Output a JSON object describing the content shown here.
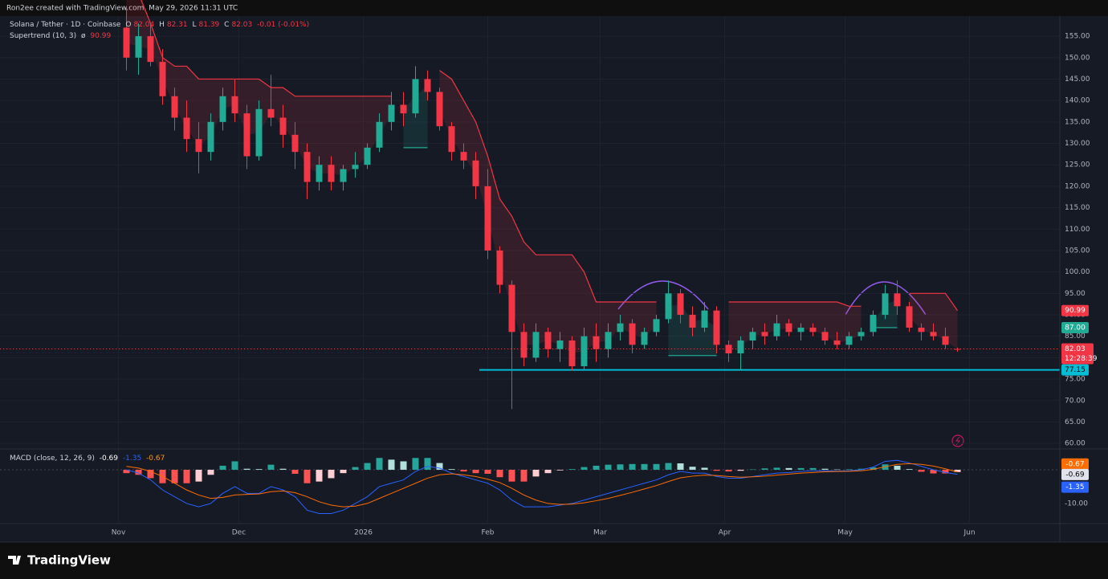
{
  "header": "Ron2ee created with TradingView.com, May 29, 2026 11:31 UTC",
  "footer_logo": "TradingView",
  "chart_data": [
    {
      "type": "candlestick",
      "title": "Solana / Tether · 1D · Coinbase",
      "legend_labels": [
        "O",
        "H",
        "L",
        "C"
      ],
      "change": "-0.01 (-0.01%)",
      "categories": [
        null,
        null,
        null,
        null,
        null,
        null,
        null,
        null,
        null,
        null,
        null,
        null,
        null,
        null,
        null,
        null,
        null,
        null,
        null,
        null,
        null,
        null,
        null,
        null,
        null,
        null,
        null,
        null,
        null,
        null,
        null,
        null,
        null,
        null,
        null,
        null,
        null,
        null,
        null,
        null,
        null,
        null,
        null,
        null,
        null,
        null,
        null,
        null,
        null,
        null,
        null,
        null,
        null,
        null,
        null,
        null,
        null,
        null,
        null,
        null,
        null,
        null,
        null,
        null,
        null,
        null,
        null,
        null,
        null,
        null
      ],
      "open": [
        157,
        150,
        155,
        149,
        141,
        136,
        131,
        128,
        135,
        141,
        137,
        127,
        138,
        136,
        132,
        128,
        121,
        125,
        121,
        124,
        125,
        129,
        135,
        139,
        137,
        145,
        142,
        134,
        128,
        126,
        120,
        105,
        97,
        86,
        80,
        86,
        82,
        84,
        78,
        85,
        82,
        86,
        88,
        83,
        86,
        89,
        95,
        90,
        87,
        91,
        83,
        81,
        84,
        86,
        85,
        88,
        86,
        87,
        86,
        84,
        83,
        85,
        86,
        90,
        95,
        92,
        87,
        86,
        85,
        82.04
      ],
      "high": [
        162,
        158,
        158,
        152,
        143,
        140,
        135,
        137,
        143,
        145,
        139,
        140,
        146,
        139,
        135,
        130,
        127,
        127,
        125,
        128,
        130,
        137,
        142,
        142,
        148,
        147,
        143,
        135,
        130,
        128,
        124,
        106,
        98,
        88,
        88,
        87,
        86,
        85,
        87,
        88,
        88,
        90,
        89,
        87,
        90,
        98,
        96,
        92,
        93,
        92,
        84,
        85,
        87,
        88,
        90,
        89,
        88,
        88,
        87,
        86,
        86,
        87,
        91,
        97,
        98,
        93,
        88,
        88,
        87,
        82.31
      ],
      "low": [
        147,
        146,
        148,
        139,
        133,
        128,
        123,
        126,
        133,
        135,
        124,
        126,
        134,
        129,
        124,
        117,
        119,
        119,
        119,
        122,
        124,
        128,
        133,
        134,
        136,
        140,
        133,
        126,
        124,
        117,
        103,
        95,
        68,
        78,
        79,
        80,
        79,
        77,
        77,
        79,
        80,
        84,
        81,
        82,
        85,
        88,
        88,
        85,
        86,
        81,
        79,
        77,
        82,
        83,
        84,
        85,
        84,
        85,
        83,
        82,
        82,
        84,
        85,
        89,
        90,
        86,
        84,
        84,
        82,
        81.39
      ],
      "close": [
        150,
        155,
        149,
        141,
        136,
        131,
        128,
        135,
        141,
        137,
        127,
        138,
        136,
        132,
        128,
        121,
        125,
        121,
        124,
        125,
        129,
        135,
        139,
        137,
        145,
        142,
        134,
        128,
        126,
        120,
        105,
        97,
        86,
        80,
        86,
        82,
        84,
        78,
        85,
        82,
        86,
        88,
        83,
        86,
        89,
        95,
        90,
        87,
        91,
        83,
        81,
        84,
        86,
        85,
        88,
        86,
        87,
        86,
        84,
        83,
        85,
        86,
        90,
        95,
        92,
        87,
        86,
        85,
        83,
        82.03
      ],
      "up_color": "#22ab94",
      "down_color": "#f23645",
      "xlim": [
        -10.5,
        77.5
      ],
      "xticks": [
        {
          "value": -0.667,
          "label": "Nov"
        },
        {
          "value": 9.33,
          "label": "Dec"
        },
        {
          "value": 19.67,
          "label": "2026"
        },
        {
          "value": 30,
          "label": "Feb"
        },
        {
          "value": 39.33,
          "label": "Mar"
        },
        {
          "value": 49.67,
          "label": "Apr"
        },
        {
          "value": 59.67,
          "label": "May"
        },
        {
          "value": 70,
          "label": "Jun"
        }
      ],
      "ylim": [
        58.9,
        159.7
      ],
      "yticks": [
        {
          "value": 60,
          "label": "60.00"
        },
        {
          "value": 65,
          "label": "65.00"
        },
        {
          "value": 70,
          "label": "70.00"
        },
        {
          "value": 75,
          "label": "75.00"
        },
        {
          "value": 80,
          "label": "80.00"
        },
        {
          "value": 85,
          "label": "85.00"
        },
        {
          "value": 90,
          "label": "90.00"
        },
        {
          "value": 95,
          "label": "95.00"
        },
        {
          "value": 100,
          "label": "100.00"
        },
        {
          "value": 105,
          "label": "105.00"
        },
        {
          "value": 110,
          "label": "110.00"
        },
        {
          "value": 115,
          "label": "115.00"
        },
        {
          "value": 120,
          "label": "120.00"
        },
        {
          "value": 125,
          "label": "125.00"
        },
        {
          "value": 130,
          "label": "130.00"
        },
        {
          "value": 135,
          "label": "135.00"
        },
        {
          "value": 140,
          "label": "140.00"
        },
        {
          "value": 145,
          "label": "145.00"
        },
        {
          "value": 150,
          "label": "150.00"
        },
        {
          "value": 155,
          "label": "155.00"
        }
      ],
      "grid": true,
      "indicator": {
        "name": "Supertrend (10, 3)",
        "symbol": "ø",
        "series": [
          {
            "color": "#f23645",
            "values": [
              165,
              165,
              158,
              150,
              148,
              148,
              145,
              145,
              145,
              145,
              145,
              145,
              143,
              143,
              141,
              141,
              141,
              141,
              141,
              141,
              141,
              141,
              141,
              null,
              null,
              null,
              147,
              145,
              140,
              135,
              127,
              117,
              113,
              107,
              104,
              104,
              104,
              104,
              100,
              93,
              93,
              93,
              93,
              93,
              93,
              null,
              null,
              null,
              null,
              null,
              93,
              93,
              93,
              93,
              93,
              93,
              93,
              93,
              93,
              93,
              92,
              92,
              null,
              null,
              null,
              95,
              95,
              95,
              95,
              90.99
            ]
          },
          {
            "color": "#22ab94",
            "values": [
              null,
              null,
              null,
              null,
              null,
              null,
              null,
              null,
              null,
              null,
              null,
              null,
              null,
              null,
              null,
              null,
              null,
              null,
              null,
              null,
              null,
              null,
              null,
              129,
              129,
              129,
              null,
              null,
              null,
              null,
              null,
              null,
              null,
              null,
              null,
              null,
              null,
              null,
              null,
              null,
              null,
              null,
              null,
              null,
              null,
              80.5,
              80.5,
              80.5,
              80.5,
              80.5,
              null,
              null,
              null,
              null,
              null,
              null,
              null,
              null,
              null,
              null,
              null,
              null,
              87,
              87,
              87,
              null,
              null,
              null,
              null,
              null
            ]
          }
        ]
      },
      "support": {
        "value": 77.15,
        "color": "#00bcd4"
      },
      "level_labels": [
        {
          "value": 87,
          "label": "87.00",
          "color": "#22ab94"
        }
      ],
      "countdown": "12:28:39"
    },
    {
      "type": "macd",
      "title": "MACD (close, 12, 26, 9)",
      "xlim": [
        -10.5,
        77.5
      ],
      "histogram": {
        "colors": [
          "#26a69a",
          "#b2dfdb",
          "#ff5252",
          "#ffcdd2"
        ],
        "values": [
          -1,
          -1.5,
          -2.5,
          -4,
          -4,
          -4,
          -3.5,
          -1.5,
          1.2,
          2.5,
          0.3,
          0.2,
          1.5,
          0.3,
          -1.2,
          -4,
          -3.5,
          -2.5,
          -1,
          0.8,
          2,
          3.5,
          3,
          2.5,
          3.5,
          3.5,
          2,
          0.2,
          -0.5,
          -1,
          -1.2,
          -2.2,
          -3.5,
          -3.5,
          -2,
          -1,
          -0.2,
          0.2,
          0.8,
          1.2,
          1.5,
          1.6,
          1.7,
          1.7,
          1.7,
          2,
          1.9,
          0.9,
          0.6,
          -0.3,
          -0.5,
          -0.3,
          0.1,
          0.4,
          0.6,
          0.5,
          0.5,
          0.5,
          0.3,
          0.1,
          0.15,
          0.3,
          0.7,
          1.6,
          1.2,
          0.2,
          -0.6,
          -1.1,
          -1.1,
          -0.69
        ]
      },
      "series": [
        {
          "color": "#2962ff",
          "values": [
            0,
            -1,
            -3,
            -6,
            -8,
            -10,
            -11,
            -10,
            -7,
            -5,
            -7,
            -7,
            -5,
            -6,
            -8,
            -12,
            -13,
            -13,
            -12,
            -10,
            -8,
            -5,
            -4,
            -3,
            -0.5,
            1,
            0.5,
            -1,
            -2,
            -3,
            -4,
            -6,
            -9,
            -11,
            -11,
            -11,
            -10.5,
            -10,
            -9,
            -8,
            -7,
            -6,
            -5,
            -4,
            -3,
            -1.5,
            -0.5,
            -1,
            -1,
            -2,
            -2.5,
            -2.5,
            -2,
            -1.5,
            -1,
            -0.8,
            -0.5,
            -0.3,
            -0.3,
            -0.4,
            -0.3,
            0,
            0.8,
            2.5,
            2.8,
            2,
            1,
            0,
            -0.8,
            -1.35
          ]
        },
        {
          "color": "#ff6d00",
          "values": [
            1,
            0.5,
            -0.5,
            -2,
            -4,
            -6,
            -7.5,
            -8.5,
            -8.2,
            -7.5,
            -7.3,
            -7.2,
            -6.5,
            -6.3,
            -6.8,
            -8,
            -9.5,
            -10.5,
            -11,
            -10.8,
            -10,
            -8.5,
            -7,
            -5.5,
            -4,
            -2.5,
            -1.5,
            -1.2,
            -1.5,
            -2,
            -2.8,
            -3.8,
            -5.5,
            -7.5,
            -9,
            -10,
            -10.3,
            -10.2,
            -9.8,
            -9.2,
            -8.5,
            -7.6,
            -6.7,
            -5.7,
            -4.7,
            -3.5,
            -2.4,
            -1.9,
            -1.6,
            -1.7,
            -2,
            -2.2,
            -2.1,
            -1.9,
            -1.6,
            -1.3,
            -1,
            -0.8,
            -0.6,
            -0.5,
            -0.45,
            -0.3,
            0.1,
            0.9,
            1.6,
            1.8,
            1.6,
            1.1,
            0.3,
            -0.67
          ]
        }
      ],
      "ylim": [
        -15.5,
        5.95
      ],
      "yticks": [
        {
          "value": -10,
          "label": "-10.00"
        }
      ]
    }
  ]
}
